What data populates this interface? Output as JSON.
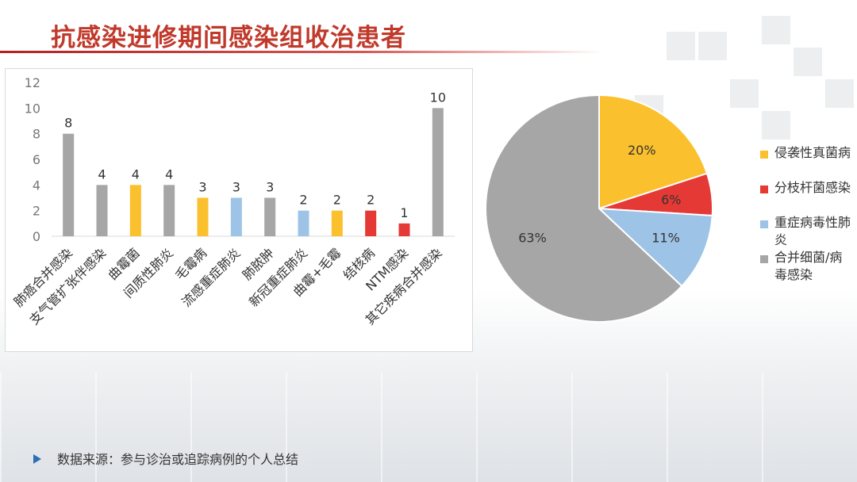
{
  "title": "抗感染进修期间感染组收治患者",
  "source": "数据来源：参与诊治或追踪病例的个人总结",
  "colors": {
    "gray": "#a6a6a6",
    "orange": "#fbc02d",
    "lightblue": "#9dc3e6",
    "red": "#e53935"
  },
  "chart_data": [
    {
      "type": "bar",
      "categories": [
        "肺癌合并感染",
        "支气管扩张伴感染",
        "曲霉菌",
        "间质性肺炎",
        "毛霉病",
        "流感重症肺炎",
        "肺脓肿",
        "新冠重症肺炎",
        "曲霉+毛霉",
        "结核病",
        "NTM感染",
        "其它疾病合并感染"
      ],
      "values": [
        8,
        4,
        4,
        4,
        3,
        3,
        3,
        2,
        2,
        2,
        1,
        10
      ],
      "bar_colors": [
        "gray",
        "gray",
        "orange",
        "gray",
        "orange",
        "lightblue",
        "gray",
        "lightblue",
        "orange",
        "red",
        "red",
        "gray"
      ],
      "yticks": [
        "0",
        "2",
        "4",
        "6",
        "8",
        "10",
        "12"
      ],
      "ylim": [
        0,
        12
      ],
      "grid": false
    },
    {
      "type": "pie",
      "labels": [
        "侵袭性真菌病",
        "分枝杆菌感染",
        "重症病毒性肺炎",
        "合并细菌/病毒感染"
      ],
      "values": [
        20,
        6,
        11,
        63
      ],
      "value_labels": [
        "20%",
        "6%",
        "11%",
        "63%"
      ],
      "slice_colors": [
        "orange",
        "red",
        "lightblue",
        "gray"
      ],
      "legend": "right"
    }
  ]
}
